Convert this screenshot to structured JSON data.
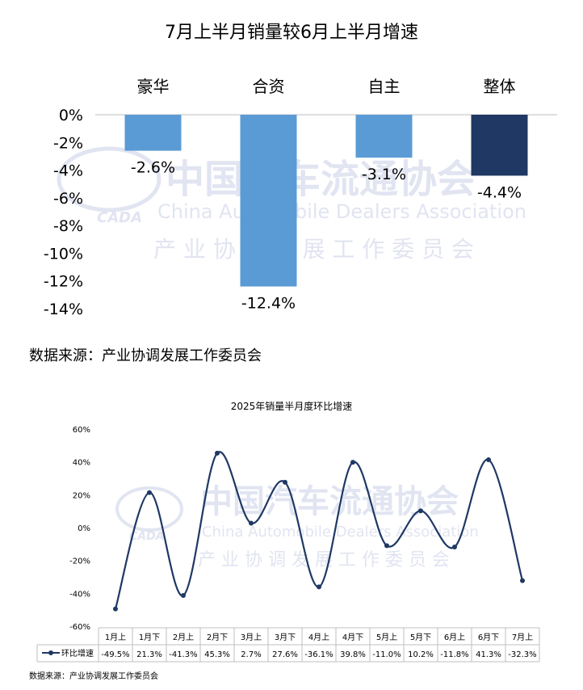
{
  "chart1": {
    "title": "7月上半月销量较6月上半月增速",
    "source": "数据来源：产业协调发展工作委员会",
    "chart_data": {
      "type": "bar",
      "categories": [
        "豪华",
        "合资",
        "自主",
        "整体"
      ],
      "values": [
        -2.6,
        -12.4,
        -3.1,
        -4.4
      ],
      "value_labels": [
        "-2.6%",
        "-12.4%",
        "-3.1%",
        "-4.4%"
      ],
      "ylim": [
        -14,
        0
      ],
      "yticks": [
        "0%",
        "-2%",
        "-4%",
        "-6%",
        "-8%",
        "-10%",
        "-12%",
        "-14%"
      ],
      "colors": [
        "#5b9bd5",
        "#5b9bd5",
        "#5b9bd5",
        "#1f3864"
      ]
    }
  },
  "chart2": {
    "title": "2025年销量半月度环比增速",
    "source": "数据来源：产业协调发展工作委员会",
    "chart_data": {
      "type": "line",
      "categories": [
        "1月上",
        "1月下",
        "2月上",
        "2月下",
        "3月上",
        "3月下",
        "4月上",
        "4月下",
        "5月上",
        "5月下",
        "6月上",
        "6月下",
        "7月上"
      ],
      "series": [
        {
          "name": "环比增速",
          "values": [
            -49.5,
            21.3,
            -41.3,
            45.3,
            2.7,
            27.6,
            -36.1,
            39.8,
            -11.0,
            10.2,
            -11.8,
            41.3,
            -32.3
          ],
          "labels": [
            "-49.5%",
            "21.3%",
            "-41.3%",
            "45.3%",
            "2.7%",
            "27.6%",
            "-36.1%",
            "39.8%",
            "-11.0%",
            "10.2%",
            "-11.8%",
            "41.3%",
            "-32.3%"
          ]
        }
      ],
      "ylim": [
        -60,
        60
      ],
      "yticks": [
        "60%",
        "40%",
        "20%",
        "0%",
        "-20%",
        "-40%",
        "-60%"
      ],
      "line_color": "#1f3864"
    }
  },
  "watermark": {
    "cn": "中国汽车流通协会",
    "en": "China Automobile Dealers Association",
    "sub": "产 业 协 调 发 展 工 作 委 员 会",
    "logo": "CADA"
  }
}
